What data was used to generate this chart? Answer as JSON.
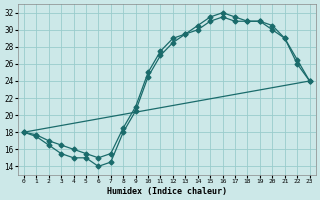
{
  "xlabel": "Humidex (Indice chaleur)",
  "bg_color": "#cce8e8",
  "grid_color": "#99cccc",
  "line_color": "#1a6b6b",
  "xlim": [
    -0.5,
    23.5
  ],
  "ylim": [
    13,
    33
  ],
  "yticks": [
    14,
    16,
    18,
    20,
    22,
    24,
    26,
    28,
    30,
    32
  ],
  "line1_x": [
    0,
    1,
    2,
    3,
    4,
    5,
    6,
    7,
    8,
    9,
    10,
    11,
    12,
    13,
    14,
    15,
    16,
    17,
    18,
    19,
    20,
    21,
    22,
    23
  ],
  "line1_y": [
    18,
    17.5,
    16.5,
    15.5,
    15.0,
    15.0,
    14.0,
    14.5,
    18.0,
    20.5,
    24.5,
    27.0,
    28.5,
    29.5,
    30.5,
    31.5,
    32.0,
    31.5,
    31.0,
    31.0,
    30.0,
    29.0,
    26.0,
    24.0
  ],
  "line2_x": [
    0,
    1,
    2,
    3,
    4,
    5,
    6,
    7,
    8,
    9,
    10,
    11,
    12,
    13,
    14,
    15,
    16,
    17,
    18,
    19,
    20,
    21,
    22,
    23
  ],
  "line2_y": [
    18,
    17.7,
    17.0,
    16.5,
    16.0,
    15.5,
    15.0,
    15.5,
    18.5,
    21.0,
    25.0,
    27.5,
    29.0,
    29.5,
    30.0,
    31.0,
    31.5,
    31.0,
    31.0,
    31.0,
    30.5,
    29.0,
    26.5,
    24.0
  ],
  "line3_x": [
    0,
    23
  ],
  "line3_y": [
    18,
    24
  ]
}
